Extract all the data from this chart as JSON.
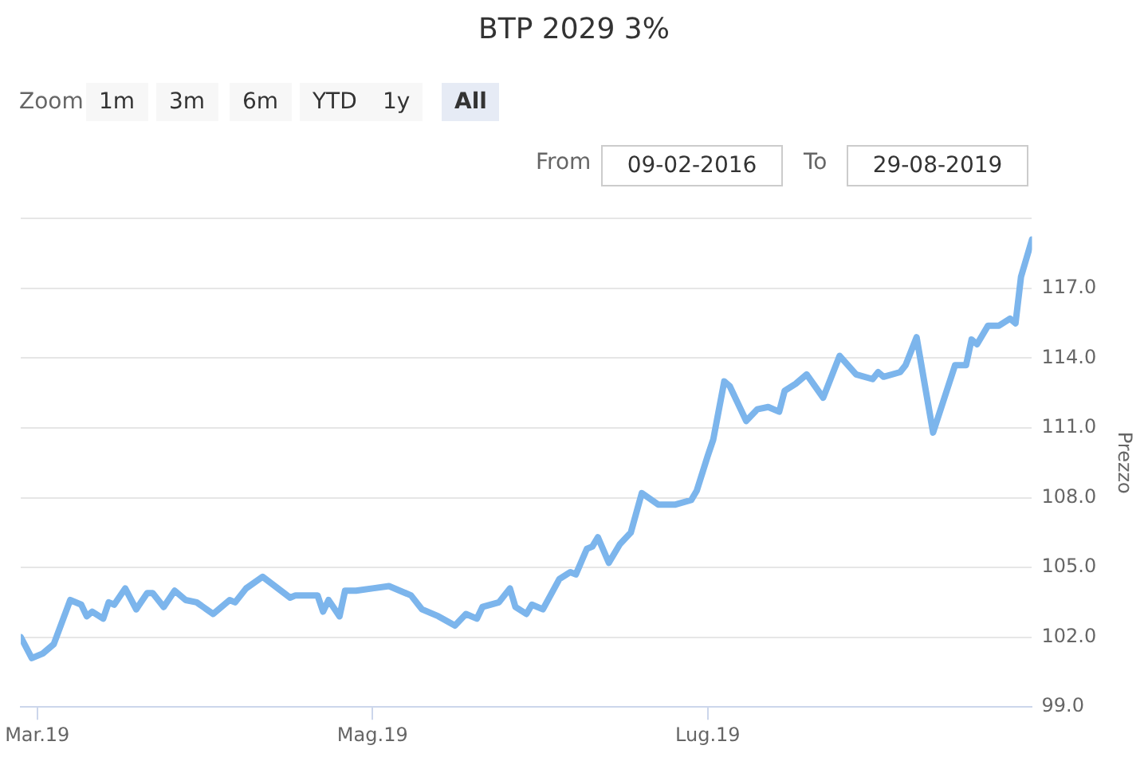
{
  "chart_data": {
    "type": "line",
    "title": "BTP 2029 3%",
    "ylabel": "Prezzo",
    "annotations": [
      "Zoom",
      "1m",
      "3m",
      "6m",
      "YTD",
      "1y",
      "All",
      "From",
      "09-02-2016",
      "To",
      "29-08-2019"
    ],
    "x": [
      "2019-02-26",
      "2019-02-28",
      "2019-03-02",
      "2019-03-04",
      "2019-03-07",
      "2019-03-09",
      "2019-03-10",
      "2019-03-11",
      "2019-03-13",
      "2019-03-14",
      "2019-03-15",
      "2019-03-17",
      "2019-03-19",
      "2019-03-21",
      "2019-03-22",
      "2019-03-24",
      "2019-03-26",
      "2019-03-28",
      "2019-03-30",
      "2019-04-02",
      "2019-04-05",
      "2019-04-06",
      "2019-04-08",
      "2019-04-11",
      "2019-04-16",
      "2019-04-17",
      "2019-04-21",
      "2019-04-22",
      "2019-04-23",
      "2019-04-25",
      "2019-04-26",
      "2019-04-28",
      "2019-05-01",
      "2019-05-04",
      "2019-05-08",
      "2019-05-10",
      "2019-05-13",
      "2019-05-16",
      "2019-05-18",
      "2019-05-20",
      "2019-05-21",
      "2019-05-24",
      "2019-05-26",
      "2019-05-27",
      "2019-05-29",
      "2019-05-30",
      "2019-06-01",
      "2019-06-04",
      "2019-06-06",
      "2019-06-07",
      "2019-06-09",
      "2019-06-10",
      "2019-06-11",
      "2019-06-13",
      "2019-06-15",
      "2019-06-17",
      "2019-06-19",
      "2019-06-22",
      "2019-06-25",
      "2019-06-28",
      "2019-06-29",
      "2019-07-01",
      "2019-07-02",
      "2019-07-04",
      "2019-07-05",
      "2019-07-08",
      "2019-07-10",
      "2019-07-12",
      "2019-07-14",
      "2019-07-15",
      "2019-07-17",
      "2019-07-19",
      "2019-07-22",
      "2019-07-25",
      "2019-07-28",
      "2019-07-31",
      "2019-08-01",
      "2019-08-02",
      "2019-08-05",
      "2019-08-06",
      "2019-08-08",
      "2019-08-11",
      "2019-08-15",
      "2019-08-17",
      "2019-08-18",
      "2019-08-19",
      "2019-08-21",
      "2019-08-23",
      "2019-08-25",
      "2019-08-26",
      "2019-08-27",
      "2019-08-29"
    ],
    "values": [
      102.0,
      101.1,
      101.3,
      101.7,
      103.6,
      103.4,
      102.9,
      103.1,
      102.8,
      103.5,
      103.4,
      104.1,
      103.2,
      103.9,
      103.9,
      103.3,
      104.0,
      103.6,
      103.5,
      103.0,
      103.6,
      103.5,
      104.1,
      104.6,
      103.7,
      103.8,
      103.8,
      103.1,
      103.6,
      102.9,
      104.0,
      104.0,
      104.1,
      104.2,
      103.8,
      103.2,
      102.9,
      102.5,
      103.0,
      102.8,
      103.3,
      103.5,
      104.1,
      103.3,
      103.0,
      103.4,
      103.2,
      104.5,
      104.8,
      104.7,
      105.8,
      105.9,
      106.3,
      105.2,
      106.0,
      106.5,
      108.2,
      107.7,
      107.7,
      107.9,
      108.3,
      109.8,
      110.5,
      113.0,
      112.8,
      111.3,
      111.8,
      111.9,
      111.7,
      112.6,
      112.9,
      113.3,
      112.3,
      114.1,
      113.3,
      113.1,
      113.4,
      113.2,
      113.4,
      113.7,
      114.9,
      110.8,
      113.7,
      113.7,
      114.8,
      114.6,
      115.4,
      115.4,
      115.7,
      115.5,
      117.5,
      119.1
    ],
    "color": "#7cb5ec",
    "marker": "none",
    "line_style": "solid",
    "grid": "y",
    "xlim": [
      "2019-02-26",
      "2019-08-29"
    ],
    "xticks": [
      {
        "value": "2019-03-01",
        "label": "Mar.19"
      },
      {
        "value": "2019-05-01",
        "label": "Mag.19"
      },
      {
        "value": "2019-07-01",
        "label": "Lug.19"
      }
    ],
    "ylim": [
      99,
      120
    ],
    "yticks": [
      {
        "value": 99,
        "label": "99.0"
      },
      {
        "value": 102,
        "label": "102.0"
      },
      {
        "value": 105,
        "label": "105.0"
      },
      {
        "value": 108,
        "label": "108.0"
      },
      {
        "value": 111,
        "label": "111.0"
      },
      {
        "value": 114,
        "label": "114.0"
      },
      {
        "value": 117,
        "label": "117.0"
      },
      {
        "value": 120,
        "label": null
      }
    ]
  }
}
